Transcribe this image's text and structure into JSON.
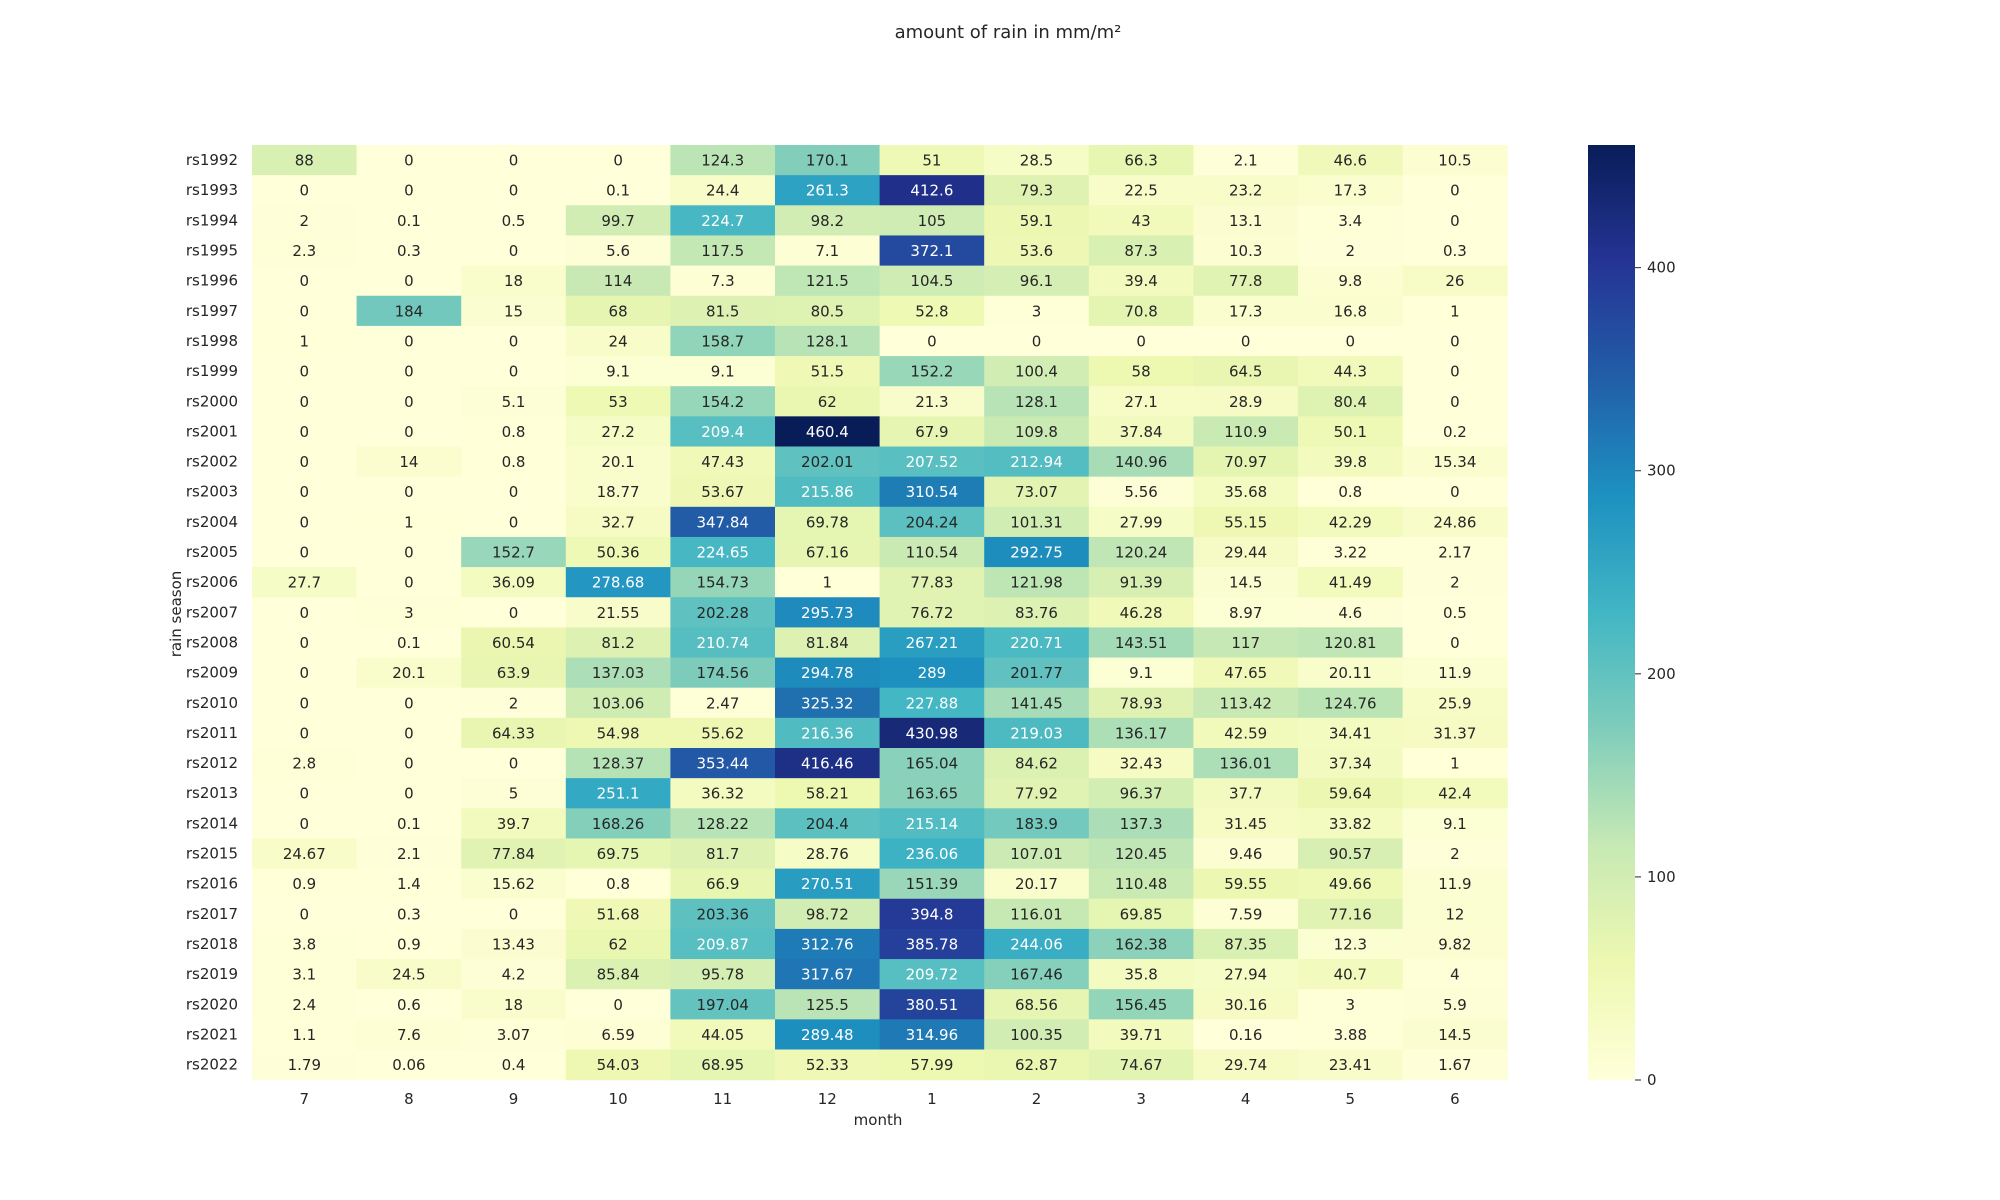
{
  "chart_data": {
    "type": "heatmap",
    "title": "amount of rain in mm/m²",
    "xlabel": "month",
    "ylabel": "rain season",
    "colormap": "YlGnBu",
    "vmin": 0,
    "vmax": 460.4,
    "colorbar_ticks": [
      0,
      100,
      200,
      300,
      400
    ],
    "x_categories": [
      "7",
      "8",
      "9",
      "10",
      "11",
      "12",
      "1",
      "2",
      "3",
      "4",
      "5",
      "6"
    ],
    "y_categories": [
      "rs1992",
      "rs1993",
      "rs1994",
      "rs1995",
      "rs1996",
      "rs1997",
      "rs1998",
      "rs1999",
      "rs2000",
      "rs2001",
      "rs2002",
      "rs2003",
      "rs2004",
      "rs2005",
      "rs2006",
      "rs2007",
      "rs2008",
      "rs2009",
      "rs2010",
      "rs2011",
      "rs2012",
      "rs2013",
      "rs2014",
      "rs2015",
      "rs2016",
      "rs2017",
      "rs2018",
      "rs2019",
      "rs2020",
      "rs2021",
      "rs2022"
    ],
    "values": [
      [
        "88",
        "0",
        "0",
        "0",
        "124.3",
        "170.1",
        "51",
        "28.5",
        "66.3",
        "2.1",
        "46.6",
        "10.5"
      ],
      [
        "0",
        "0",
        "0",
        "0.1",
        "24.4",
        "261.3",
        "412.6",
        "79.3",
        "22.5",
        "23.2",
        "17.3",
        "0"
      ],
      [
        "2",
        "0.1",
        "0.5",
        "99.7",
        "224.7",
        "98.2",
        "105",
        "59.1",
        "43",
        "13.1",
        "3.4",
        "0"
      ],
      [
        "2.3",
        "0.3",
        "0",
        "5.6",
        "117.5",
        "7.1",
        "372.1",
        "53.6",
        "87.3",
        "10.3",
        "2",
        "0.3"
      ],
      [
        "0",
        "0",
        "18",
        "114",
        "7.3",
        "121.5",
        "104.5",
        "96.1",
        "39.4",
        "77.8",
        "9.8",
        "26"
      ],
      [
        "0",
        "184",
        "15",
        "68",
        "81.5",
        "80.5",
        "52.8",
        "3",
        "70.8",
        "17.3",
        "16.8",
        "1"
      ],
      [
        "1",
        "0",
        "0",
        "24",
        "158.7",
        "128.1",
        "0",
        "0",
        "0",
        "0",
        "0",
        "0"
      ],
      [
        "0",
        "0",
        "0",
        "9.1",
        "9.1",
        "51.5",
        "152.2",
        "100.4",
        "58",
        "64.5",
        "44.3",
        "0"
      ],
      [
        "0",
        "0",
        "5.1",
        "53",
        "154.2",
        "62",
        "21.3",
        "128.1",
        "27.1",
        "28.9",
        "80.4",
        "0"
      ],
      [
        "0",
        "0",
        "0.8",
        "27.2",
        "209.4",
        "460.4",
        "67.9",
        "109.8",
        "37.84",
        "110.9",
        "50.1",
        "0.2"
      ],
      [
        "0",
        "14",
        "0.8",
        "20.1",
        "47.43",
        "202.01",
        "207.52",
        "212.94",
        "140.96",
        "70.97",
        "39.8",
        "15.34"
      ],
      [
        "0",
        "0",
        "0",
        "18.77",
        "53.67",
        "215.86",
        "310.54",
        "73.07",
        "5.56",
        "35.68",
        "0.8",
        "0"
      ],
      [
        "0",
        "1",
        "0",
        "32.7",
        "347.84",
        "69.78",
        "204.24",
        "101.31",
        "27.99",
        "55.15",
        "42.29",
        "24.86"
      ],
      [
        "0",
        "0",
        "152.7",
        "50.36",
        "224.65",
        "67.16",
        "110.54",
        "292.75",
        "120.24",
        "29.44",
        "3.22",
        "2.17"
      ],
      [
        "27.7",
        "0",
        "36.09",
        "278.68",
        "154.73",
        "1",
        "77.83",
        "121.98",
        "91.39",
        "14.5",
        "41.49",
        "2"
      ],
      [
        "0",
        "3",
        "0",
        "21.55",
        "202.28",
        "295.73",
        "76.72",
        "83.76",
        "46.28",
        "8.97",
        "4.6",
        "0.5"
      ],
      [
        "0",
        "0.1",
        "60.54",
        "81.2",
        "210.74",
        "81.84",
        "267.21",
        "220.71",
        "143.51",
        "117",
        "120.81",
        "0"
      ],
      [
        "0",
        "20.1",
        "63.9",
        "137.03",
        "174.56",
        "294.78",
        "289",
        "201.77",
        "9.1",
        "47.65",
        "20.11",
        "11.9"
      ],
      [
        "0",
        "0",
        "2",
        "103.06",
        "2.47",
        "325.32",
        "227.88",
        "141.45",
        "78.93",
        "113.42",
        "124.76",
        "25.9"
      ],
      [
        "0",
        "0",
        "64.33",
        "54.98",
        "55.62",
        "216.36",
        "430.98",
        "219.03",
        "136.17",
        "42.59",
        "34.41",
        "31.37"
      ],
      [
        "2.8",
        "0",
        "0",
        "128.37",
        "353.44",
        "416.46",
        "165.04",
        "84.62",
        "32.43",
        "136.01",
        "37.34",
        "1"
      ],
      [
        "0",
        "0",
        "5",
        "251.1",
        "36.32",
        "58.21",
        "163.65",
        "77.92",
        "96.37",
        "37.7",
        "59.64",
        "42.4"
      ],
      [
        "0",
        "0.1",
        "39.7",
        "168.26",
        "128.22",
        "204.4",
        "215.14",
        "183.9",
        "137.3",
        "31.45",
        "33.82",
        "9.1"
      ],
      [
        "24.67",
        "2.1",
        "77.84",
        "69.75",
        "81.7",
        "28.76",
        "236.06",
        "107.01",
        "120.45",
        "9.46",
        "90.57",
        "2"
      ],
      [
        "0.9",
        "1.4",
        "15.62",
        "0.8",
        "66.9",
        "270.51",
        "151.39",
        "20.17",
        "110.48",
        "59.55",
        "49.66",
        "11.9"
      ],
      [
        "0",
        "0.3",
        "0",
        "51.68",
        "203.36",
        "98.72",
        "394.8",
        "116.01",
        "69.85",
        "7.59",
        "77.16",
        "12"
      ],
      [
        "3.8",
        "0.9",
        "13.43",
        "62",
        "209.87",
        "312.76",
        "385.78",
        "244.06",
        "162.38",
        "87.35",
        "12.3",
        "9.82"
      ],
      [
        "3.1",
        "24.5",
        "4.2",
        "85.84",
        "95.78",
        "317.67",
        "209.72",
        "167.46",
        "35.8",
        "27.94",
        "40.7",
        "4"
      ],
      [
        "2.4",
        "0.6",
        "18",
        "0",
        "197.04",
        "125.5",
        "380.51",
        "68.56",
        "156.45",
        "30.16",
        "3",
        "5.9"
      ],
      [
        "1.1",
        "7.6",
        "3.07",
        "6.59",
        "44.05",
        "289.48",
        "314.96",
        "100.35",
        "39.71",
        "0.16",
        "3.88",
        "14.5"
      ],
      [
        "1.79",
        "0.06",
        "0.4",
        "54.03",
        "68.95",
        "52.33",
        "57.99",
        "62.87",
        "74.67",
        "29.74",
        "23.41",
        "1.67"
      ]
    ]
  }
}
